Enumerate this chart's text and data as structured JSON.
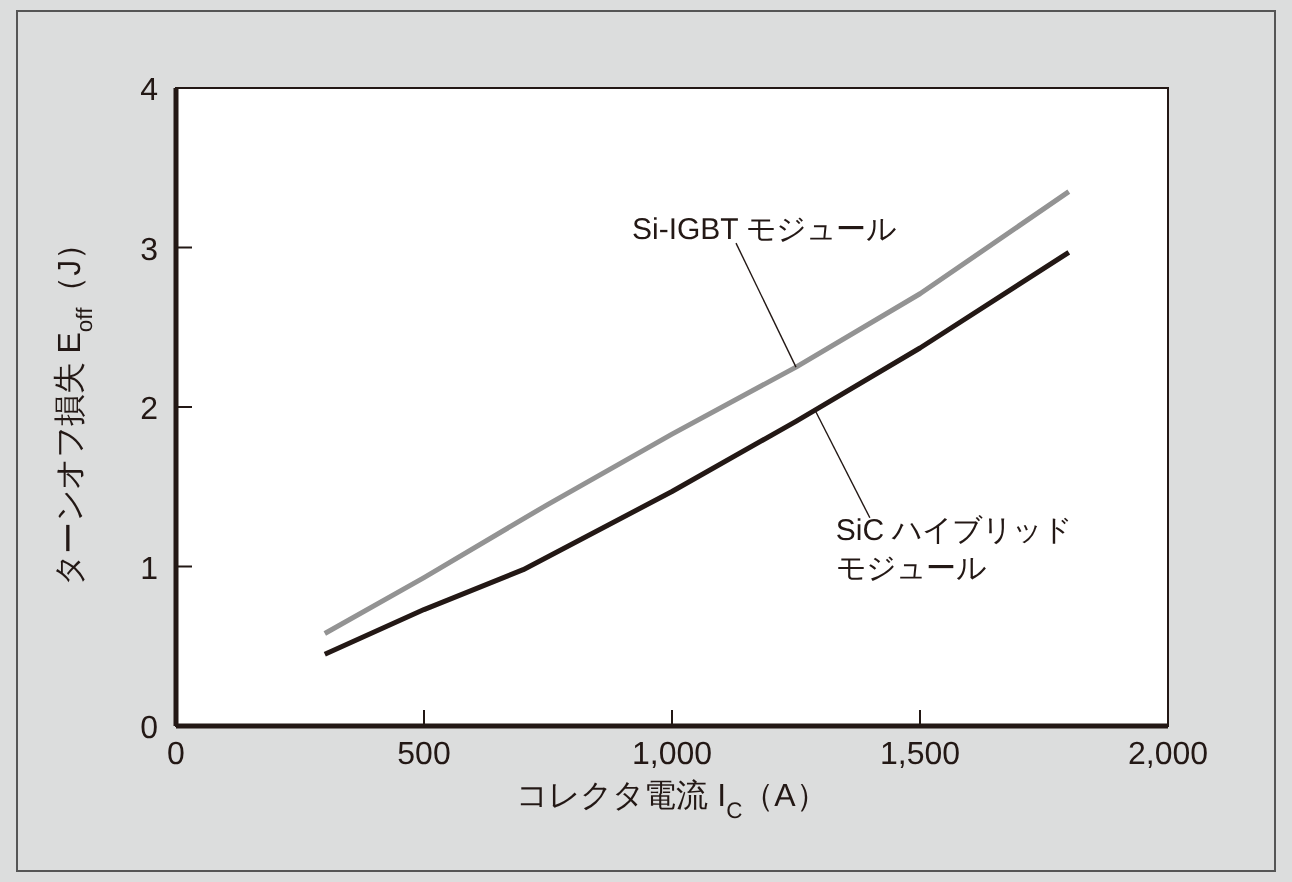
{
  "chart_data": {
    "type": "line",
    "xlabel": "コレクタ電流 I$_{C}$（A）",
    "ylabel": "ターンオフ損失 E$_{off}$（J）",
    "xlim": [
      0,
      2000
    ],
    "ylim": [
      0,
      4
    ],
    "xticks": [
      0,
      500,
      {
        "value": 1000,
        "label": "1,000"
      },
      {
        "value": 1500,
        "label": "1,500"
      },
      {
        "value": 2000,
        "label": "2,000"
      }
    ],
    "yticks": [
      0,
      1,
      2,
      3,
      4
    ],
    "series": [
      {
        "color": "#939393",
        "x": [
          300,
          500,
          750,
          1000,
          1250,
          1500,
          1800
        ],
        "values": [
          0.58,
          0.93,
          1.39,
          1.83,
          2.25,
          2.71,
          3.35
        ]
      },
      {
        "color": "#231815",
        "x": [
          300,
          500,
          700,
          1000,
          1250,
          1500,
          1800
        ],
        "values": [
          0.45,
          0.73,
          0.98,
          1.47,
          1.91,
          2.37,
          2.97
        ]
      }
    ],
    "annotations": [
      {
        "text": "Si-IGBT モジュール",
        "x": 1250,
        "y": 2.25
      },
      {
        "text": "SiC ハイブリッドモジュール",
        "x": 1290,
        "y": 1.97
      }
    ]
  }
}
